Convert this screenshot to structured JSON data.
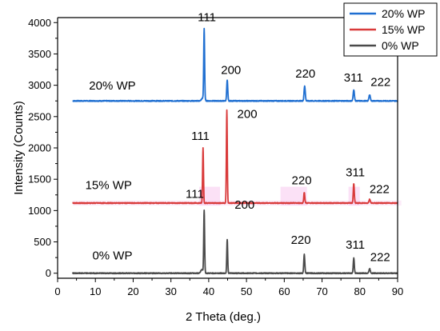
{
  "chart_data": {
    "type": "line",
    "xlabel": "2 Theta (deg.)",
    "ylabel": "Intensity (Counts)",
    "xlim": [
      0,
      90
    ],
    "ylim": [
      -80,
      4080
    ],
    "xticks": [
      0,
      10,
      20,
      30,
      40,
      50,
      60,
      70,
      80,
      90
    ],
    "yticks": [
      0,
      500,
      1000,
      1500,
      2000,
      2500,
      3000,
      3500,
      4000
    ],
    "grid": false,
    "legend": {
      "position": "top-right",
      "items": [
        "20% WP",
        "15% WP",
        "0% WP"
      ]
    },
    "series": [
      {
        "name": "20% WP",
        "color": "#1f6fd1",
        "baseline": 2750,
        "x_range": [
          4,
          90
        ],
        "peaks": [
          {
            "x": 38.5,
            "y": 2800,
            "w": 0.35
          },
          {
            "x": 38.8,
            "y": 3870,
            "w": 0.12
          },
          {
            "x": 44.9,
            "y": 3080,
            "w": 0.14
          },
          {
            "x": 65.4,
            "y": 2990,
            "w": 0.16
          },
          {
            "x": 78.4,
            "y": 2930,
            "w": 0.16
          },
          {
            "x": 82.6,
            "y": 2850,
            "w": 0.18
          }
        ]
      },
      {
        "name": "15% WP",
        "color": "#d93a3a",
        "baseline": 1120,
        "x_range": [
          4,
          90
        ],
        "peaks": [
          {
            "x": 38.5,
            "y": 2000,
            "w": 0.12
          },
          {
            "x": 44.8,
            "y": 2600,
            "w": 0.12
          },
          {
            "x": 65.3,
            "y": 1290,
            "w": 0.14
          },
          {
            "x": 78.4,
            "y": 1430,
            "w": 0.14
          },
          {
            "x": 82.6,
            "y": 1180,
            "w": 0.18
          }
        ]
      },
      {
        "name": "0% WP",
        "color": "#4a4a4a",
        "baseline": 0,
        "x_range": [
          4,
          90
        ],
        "peaks": [
          {
            "x": 38.2,
            "y": 60,
            "w": 0.3
          },
          {
            "x": 38.8,
            "y": 1000,
            "w": 0.12
          },
          {
            "x": 44.9,
            "y": 540,
            "w": 0.12
          },
          {
            "x": 65.3,
            "y": 300,
            "w": 0.14
          },
          {
            "x": 78.4,
            "y": 240,
            "w": 0.14
          },
          {
            "x": 82.6,
            "y": 70,
            "w": 0.18
          }
        ]
      }
    ],
    "annotations": [
      {
        "text": "111",
        "x": 39.5,
        "y": 4020
      },
      {
        "text": "200",
        "x": 45.9,
        "y": 3180
      },
      {
        "text": "220",
        "x": 65.6,
        "y": 3120
      },
      {
        "text": "311",
        "x": 78.3,
        "y": 3060
      },
      {
        "text": "222",
        "x": 85.5,
        "y": 2990
      },
      {
        "text": "20% WP",
        "x": 14.5,
        "y": 2930
      },
      {
        "text": "111",
        "x": 37.8,
        "y": 2130
      },
      {
        "text": "200",
        "x": 50.2,
        "y": 2480
      },
      {
        "text": "220",
        "x": 64.6,
        "y": 1420
      },
      {
        "text": "311",
        "x": 78.8,
        "y": 1550
      },
      {
        "text": "222",
        "x": 85.2,
        "y": 1280
      },
      {
        "text": "15% WP",
        "x": 13.5,
        "y": 1340
      },
      {
        "text": "111",
        "x": 36.3,
        "y": 1200
      },
      {
        "text": "200",
        "x": 49.5,
        "y": 1030
      },
      {
        "text": "220",
        "x": 64.4,
        "y": 470
      },
      {
        "text": "311",
        "x": 78.8,
        "y": 395
      },
      {
        "text": "222",
        "x": 85.4,
        "y": 195
      },
      {
        "text": "0% WP",
        "x": 14.5,
        "y": 220
      }
    ]
  }
}
